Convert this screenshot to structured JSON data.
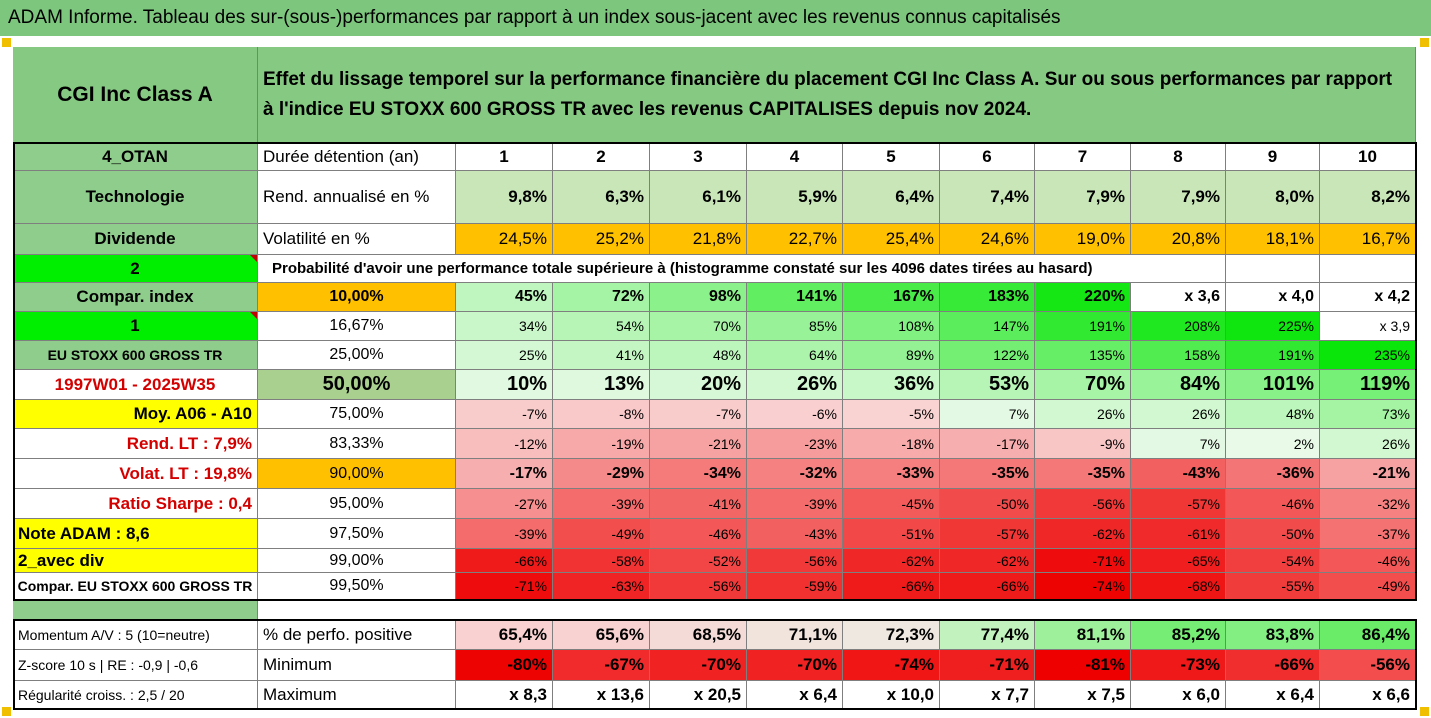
{
  "banner": {
    "title": "ADAM Informe. Tableau des sur-(sous-)performances par rapport à un index sous-jacent avec les revenus connus capitalisés"
  },
  "header": {
    "name": "CGI Inc Class A",
    "description": "Effet du lissage temporel sur la performance financière du placement CGI Inc Class A. Sur ou sous performances par rapport à l'indice EU STOXX 600 GROSS TR avec les revenus CAPITALISES depuis nov 2024."
  },
  "left_labels": [
    "4_OTAN",
    "Technologie",
    "Dividende",
    "2",
    "Compar. index",
    "1",
    "EU STOXX 600 GROSS TR",
    "1997W01 - 2025W35",
    "Moy. A06 - A10",
    "Rend. LT :    7,9%",
    "Volat. LT :   19,8%",
    "Ratio Sharpe :    0,4",
    "Note ADAM : 8,6",
    "2_avec div",
    "Compar. EU STOXX 600 GROSS TR"
  ],
  "years_header": {
    "label": "Durée détention (an)",
    "years": [
      "1",
      "2",
      "3",
      "4",
      "5",
      "6",
      "7",
      "8",
      "9",
      "10"
    ]
  },
  "returns": {
    "label": "Rend. annualisé en %",
    "values": [
      "9,8%",
      "6,3%",
      "6,1%",
      "5,9%",
      "6,4%",
      "7,4%",
      "7,9%",
      "7,9%",
      "8,0%",
      "8,2%"
    ]
  },
  "volatility": {
    "label": "Volatilité en %",
    "values": [
      "24,5%",
      "25,2%",
      "21,8%",
      "22,7%",
      "25,4%",
      "24,6%",
      "19,0%",
      "20,8%",
      "18,1%",
      "16,7%"
    ]
  },
  "probability_title": "Probabilité d'avoir une performance totale supérieure à (histogramme constaté sur les 4096 dates tirées au hasard)",
  "quantiles": [
    {
      "level": "10,00%",
      "values": [
        "45%",
        "72%",
        "98%",
        "141%",
        "167%",
        "183%",
        "220%",
        "x 3,6",
        "x 4,0",
        "x 4,2"
      ]
    },
    {
      "level": "16,67%",
      "values": [
        "34%",
        "54%",
        "70%",
        "85%",
        "108%",
        "147%",
        "191%",
        "208%",
        "225%",
        "x 3,9"
      ]
    },
    {
      "level": "25,00%",
      "values": [
        "25%",
        "41%",
        "48%",
        "64%",
        "89%",
        "122%",
        "135%",
        "158%",
        "191%",
        "235%"
      ]
    },
    {
      "level": "50,00%",
      "values": [
        "10%",
        "13%",
        "20%",
        "26%",
        "36%",
        "53%",
        "70%",
        "84%",
        "101%",
        "119%"
      ]
    },
    {
      "level": "75,00%",
      "values": [
        "-7%",
        "-8%",
        "-7%",
        "-6%",
        "-5%",
        "7%",
        "26%",
        "26%",
        "48%",
        "73%"
      ]
    },
    {
      "level": "83,33%",
      "values": [
        "-12%",
        "-19%",
        "-21%",
        "-23%",
        "-18%",
        "-17%",
        "-9%",
        "7%",
        "2%",
        "26%"
      ]
    },
    {
      "level": "90,00%",
      "values": [
        "-17%",
        "-29%",
        "-34%",
        "-32%",
        "-33%",
        "-35%",
        "-35%",
        "-43%",
        "-36%",
        "-21%"
      ]
    },
    {
      "level": "95,00%",
      "values": [
        "-27%",
        "-39%",
        "-41%",
        "-39%",
        "-45%",
        "-50%",
        "-56%",
        "-57%",
        "-46%",
        "-32%"
      ]
    },
    {
      "level": "97,50%",
      "values": [
        "-39%",
        "-49%",
        "-46%",
        "-43%",
        "-51%",
        "-57%",
        "-62%",
        "-61%",
        "-50%",
        "-37%"
      ]
    },
    {
      "level": "99,00%",
      "values": [
        "-66%",
        "-58%",
        "-52%",
        "-56%",
        "-62%",
        "-62%",
        "-71%",
        "-65%",
        "-54%",
        "-46%"
      ]
    },
    {
      "level": "99,50%",
      "values": [
        "-71%",
        "-63%",
        "-56%",
        "-59%",
        "-66%",
        "-66%",
        "-74%",
        "-68%",
        "-55%",
        "-49%"
      ]
    }
  ],
  "stats": [
    {
      "left": "Momentum A/V : 5 (10=neutre)",
      "label": "% de perfo. positive",
      "values": [
        "65,4%",
        "65,6%",
        "68,5%",
        "71,1%",
        "72,3%",
        "77,4%",
        "81,1%",
        "85,2%",
        "83,8%",
        "86,4%"
      ]
    },
    {
      "left": "Z-score 10 s  |  RE : -0,9  |  -0,6",
      "label": "Minimum",
      "values": [
        "-80%",
        "-67%",
        "-70%",
        "-70%",
        "-74%",
        "-71%",
        "-81%",
        "-73%",
        "-66%",
        "-56%"
      ]
    },
    {
      "left": "Régularité croiss. : 2,5 / 20",
      "label": "Maximum",
      "values": [
        "x 8,3",
        "x 13,6",
        "x 20,5",
        "x 6,4",
        "x 10,0",
        "x 7,7",
        "x 7,5",
        "x 6,0",
        "x 6,4",
        "x 6,6"
      ]
    }
  ],
  "colors": {
    "banner": "#7dc67e",
    "header_green": "#86c983",
    "label_green": "#8fcd8c",
    "bright_green": "#00ee00",
    "yellow": "#ffff00",
    "orange": "#ffc000",
    "dark_red": "#ee0000",
    "white": "#ffffff"
  }
}
